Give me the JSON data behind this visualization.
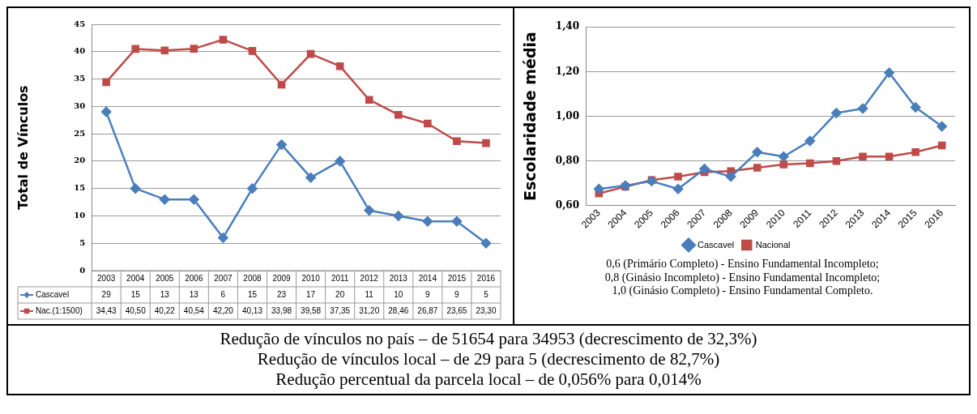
{
  "chart_data": [
    {
      "type": "line",
      "ylabel": "Total de Vínculos",
      "categories": [
        "2003",
        "2004",
        "2005",
        "2006",
        "2007",
        "2008",
        "2009",
        "2010",
        "2011",
        "2012",
        "2013",
        "2014",
        "2015",
        "2016"
      ],
      "ylim": [
        0,
        45
      ],
      "yticks": [
        0,
        5,
        10,
        15,
        20,
        25,
        30,
        35,
        40,
        45
      ],
      "grid": "y",
      "legend": "bottom left",
      "series": [
        {
          "name": "Cascavel",
          "color": "#4a7ebb",
          "marker": "diamond",
          "values": [
            29,
            15,
            13,
            13,
            6,
            15,
            23,
            17,
            20,
            11,
            10,
            9,
            9,
            5
          ],
          "value_labels": [
            "29",
            "15",
            "13",
            "13",
            "6",
            "15",
            "23",
            "17",
            "20",
            "11",
            "10",
            "9",
            "9",
            "5"
          ]
        },
        {
          "name": "Nac.(1:1500)",
          "color": "#be4b48",
          "marker": "square",
          "values": [
            34.43,
            40.5,
            40.22,
            40.54,
            42.2,
            40.13,
            33.98,
            39.58,
            37.35,
            31.2,
            28.46,
            26.87,
            23.65,
            23.3
          ],
          "value_labels": [
            "34,43",
            "40,50",
            "40,22",
            "40,54",
            "42,20",
            "40,13",
            "33,98",
            "39,58",
            "37,35",
            "31,20",
            "28,46",
            "26,87",
            "23,65",
            "23,30"
          ]
        }
      ]
    },
    {
      "type": "line",
      "ylabel": "Escolaridade média",
      "categories": [
        "2003",
        "2004",
        "2005",
        "2006",
        "2007",
        "2008",
        "2009",
        "2010",
        "2011",
        "2012",
        "2013",
        "2014",
        "2015",
        "2016"
      ],
      "ylim": [
        0.6,
        1.4
      ],
      "yticks": [
        {
          "value": 0.6,
          "label": "0,60"
        },
        {
          "value": 0.8,
          "label": "0,80"
        },
        {
          "value": 1.0,
          "label": "1,00"
        },
        {
          "value": 1.2,
          "label": "1,20"
        },
        {
          "value": 1.4,
          "label": "1,40"
        }
      ],
      "grid": "y",
      "legend": "bottom",
      "series": [
        {
          "name": "Cascavel",
          "color": "#4a7ebb",
          "marker": "diamond",
          "values": [
            0.675,
            0.69,
            0.71,
            0.675,
            0.765,
            0.73,
            0.84,
            0.82,
            0.89,
            1.015,
            1.035,
            1.195,
            1.04,
            0.955
          ]
        },
        {
          "name": "Nacional",
          "color": "#be4b48",
          "marker": "square",
          "values": [
            0.655,
            0.685,
            0.715,
            0.73,
            0.75,
            0.755,
            0.77,
            0.785,
            0.79,
            0.8,
            0.82,
            0.82,
            0.84,
            0.87
          ]
        }
      ],
      "annotations": [
        "0,6 (Primário Completo) - Ensino Fundamental Incompleto;",
        "0,8 (Ginásio Incompleto) - Ensino Fundamental Incompleto;",
        "1,0 (Ginásio Completo) - Ensino Fundamental Completo."
      ]
    },
    {
      "type": "other",
      "annotations": [
        "Redução de vínculos no país – de 51654 para 34953 (decrescimento de 32,3%)",
        "Redução de vínculos local – de 29 para 5 (decrescimento de 82,7%)",
        "Redução percentual da parcela local – de 0,056% para 0,014%"
      ]
    }
  ]
}
